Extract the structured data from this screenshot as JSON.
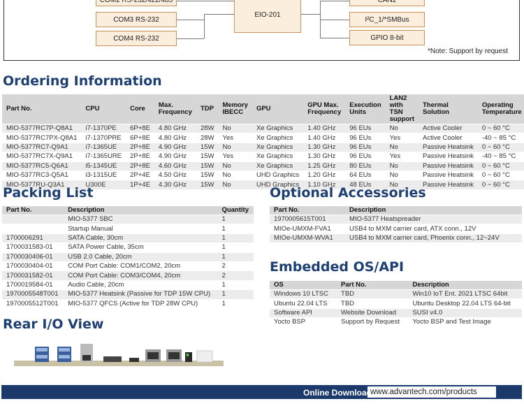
{
  "diagram": {
    "left": [
      "COM2 RS-232/422/485",
      "COM3 RS-232",
      "COM4 RS-232"
    ],
    "center": "EIO-201",
    "right": [
      "CAN2",
      "I²C_1/*SMBus",
      "GPIO 8-bit"
    ],
    "note": "*Note: Support by request"
  },
  "ordering": {
    "title": "Ordering Information",
    "header": [
      "Part No.",
      "CPU",
      "Core",
      "Max. Frequency",
      "TDP",
      "Memory IBECC",
      "GPU",
      "GPU Max. Frequency",
      "Execution Units",
      "LAN2 with TSN support",
      "Thermal Solution",
      "Operating Temperature"
    ],
    "rows": [
      [
        "MIO-5377RC7P-Q8A1",
        "i7-1370PE",
        "6P+8E",
        "4.80 GHz",
        "28W",
        "No",
        "Xe Graphics",
        "1.40 GHz",
        "96 EUs",
        "No",
        "Active Cooler",
        "0 ~ 60 °C"
      ],
      [
        "MIO-5377RC7PX-Q8A1",
        "i7-1370PRE",
        "6P+8E",
        "4.80 GHz",
        "28W",
        "Yes",
        "Xe Graphics",
        "1.40 GHz",
        "96 EUs",
        "Yes",
        "Active Cooler",
        "-40 ~ 85 °C"
      ],
      [
        "MIO-5377RC7-Q9A1",
        "i7-1365UE",
        "2P+8E",
        "4.90 GHz",
        "15W",
        "No",
        "Xe Graphics",
        "1.30 GHz",
        "96 EUs",
        "No",
        "Passive Heatsink",
        "0 ~ 60 °C"
      ],
      [
        "MIO-5377RC7X-Q9A1",
        "i7-1365URE",
        "2P+8E",
        "4.90 GHz",
        "15W",
        "Yes",
        "Xe Graphics",
        "1.30 GHz",
        "96 EUs",
        "Yes",
        "Passive Heatsink",
        "-40 ~ 85 °C"
      ],
      [
        "MIO-5377RC5-Q6A1",
        "i5-1345UE",
        "2P+8E",
        "4.60 GHz",
        "15W",
        "No",
        "Xe Graphics",
        "1.25 GHz",
        "80 EUs",
        "No",
        "Passive Heatsink",
        "0 ~ 60 °C"
      ],
      [
        "MIO-5377RC3-Q5A1",
        "i3-1315UE",
        "2P+4E",
        "4.50 GHz",
        "15W",
        "No",
        "UHD Graphics",
        "1.20 GHz",
        "64 EUs",
        "No",
        "Passive Heatsink",
        "0 ~ 60 °C"
      ],
      [
        "MIO-5377RU-Q3A1",
        "U300E",
        "1P+4E",
        "4.30 GHz",
        "15W",
        "No",
        "UHD Graphics",
        "1.10 GHz",
        "48 EUs",
        "No",
        "Passive Heatsink",
        "0 ~ 60 °C"
      ]
    ]
  },
  "packing": {
    "title": "Packing List",
    "header": [
      "Part No.",
      "Description",
      "Quantity"
    ],
    "rows": [
      [
        "",
        "MIO-5377 SBC",
        "1"
      ],
      [
        "",
        "Startup Manual",
        "1"
      ],
      [
        "1700006291",
        "SATA Cable, 30cm",
        "1"
      ],
      [
        "1700031583-01",
        "SATA Power Cable, 35cm",
        "1"
      ],
      [
        "1700030406-01",
        "USB 2.0 Cable, 20cm",
        "1"
      ],
      [
        "1700030404-01",
        "COM Port Cable: COM1/COM2, 20cm",
        "2"
      ],
      [
        "1700031582-01",
        "COM Port Cable: COM3/COM4, 20cm",
        "2"
      ],
      [
        "1700019584-01",
        "Audio Cable, 20cm",
        "1"
      ],
      [
        "1970005548T001",
        "MIO-5377 Heatsink (Passive for TDP 15W CPU)",
        "1"
      ],
      [
        "1970005512T001",
        "MIO-5377 QFCS (Active for TDP 28W CPU)",
        "1"
      ]
    ]
  },
  "accessories": {
    "title": "Optional Accessories",
    "header": [
      "Part No.",
      "Description"
    ],
    "rows": [
      [
        "1970005615T001",
        "MIO-5377 Heatspreader"
      ],
      [
        "MIOe-UMXM-FVA1",
        "USB4 to MXM carrier card, ATX conn., 12V"
      ],
      [
        "MIOe-UMXM-WVA1",
        "USB4 to MXM carrier card, Phoenix conn., 12~24V"
      ]
    ]
  },
  "os": {
    "title": "Embedded OS/API",
    "header": [
      "OS",
      "Part No.",
      "Description"
    ],
    "rows": [
      [
        "Windows 10 LTSC",
        "TBD",
        "Win10 IoT Ent. 2021 LTSC 64bit"
      ],
      [
        "Ubuntu 22.04 LTS",
        "TBD",
        "Ubuntu Desktop 22.04 LTS 64-bit"
      ],
      [
        "Software API",
        "Website Download",
        "SUSI v4.0"
      ],
      [
        "Yocto BSP",
        "Support by Request",
        "Yocto BSP and Test Image"
      ]
    ]
  },
  "rear": {
    "title": "Rear I/O View"
  },
  "footer": {
    "label": "Online Download",
    "url": "www.advantech.com/products"
  }
}
